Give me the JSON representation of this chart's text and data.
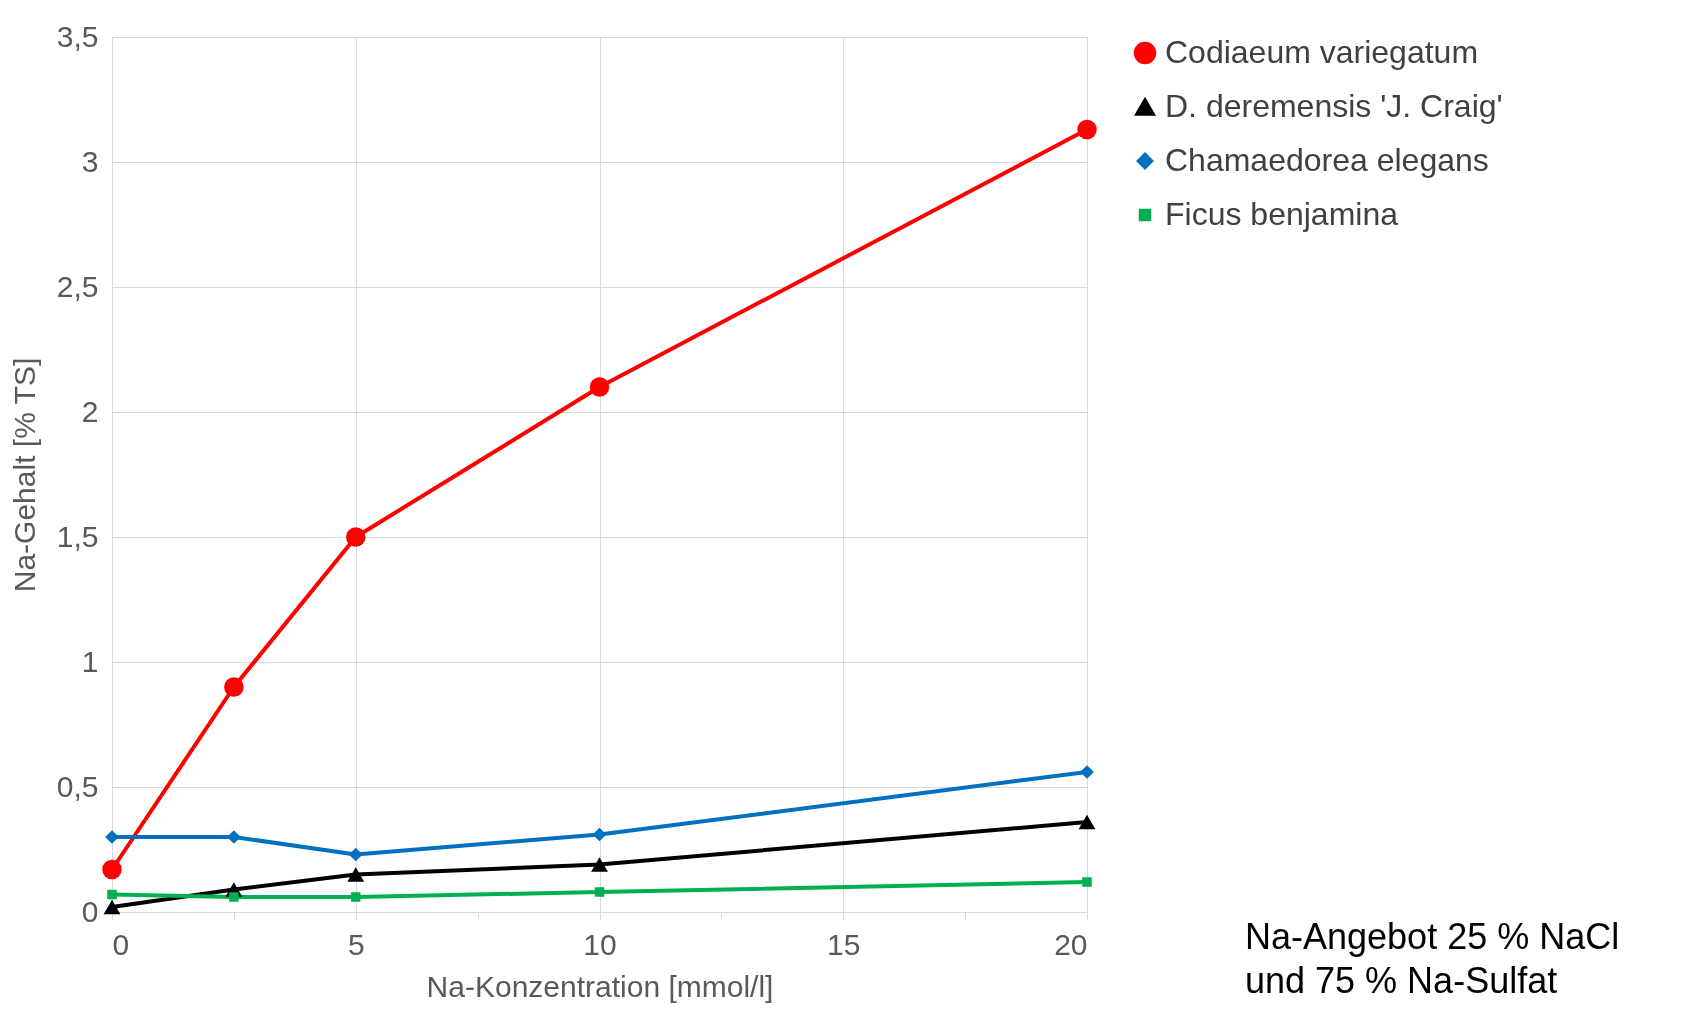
{
  "chart_data": {
    "type": "line",
    "xlabel": "Na-Konzentration [mmol/l]",
    "ylabel": "Na-Gehalt [% TS]",
    "x": [
      0,
      2.5,
      5,
      10,
      20
    ],
    "series": [
      {
        "name": "Codiaeum variegatum",
        "color": "#ff0000",
        "marker": "circle",
        "values": [
          0.17,
          0.9,
          1.5,
          2.1,
          3.13
        ]
      },
      {
        "name": "D. deremensis 'J. Craig'",
        "color": "#000000",
        "marker": "triangle",
        "values": [
          0.02,
          0.09,
          0.15,
          0.19,
          0.36
        ]
      },
      {
        "name": "Chamaedorea elegans",
        "color": "#0070c0",
        "marker": "diamond",
        "values": [
          0.3,
          0.3,
          0.23,
          0.31,
          0.56
        ]
      },
      {
        "name": "Ficus benjamina",
        "color": "#00b050",
        "marker": "square",
        "values": [
          0.07,
          0.06,
          0.06,
          0.08,
          0.12
        ]
      }
    ],
    "xlim": [
      0,
      20
    ],
    "xticks": [
      0,
      {
        "value": 2.5,
        "label": null
      },
      5,
      {
        "value": 7.5,
        "label": null
      },
      10,
      {
        "value": 12.5,
        "label": null
      },
      15,
      {
        "value": 17.5,
        "label": null
      },
      20
    ],
    "ylim": [
      0,
      3.5
    ],
    "yticks": [
      0,
      {
        "value": 0.5,
        "label": "0,5"
      },
      1,
      {
        "value": 1.5,
        "label": "1,5"
      },
      2,
      {
        "value": 2.5,
        "label": "2,5"
      },
      3,
      {
        "value": 3.5,
        "label": "3,5"
      }
    ],
    "grid": true,
    "legend": "right",
    "line_style": "solid",
    "annotations": [
      "Na-Angebot 25 % NaCl\nund 75 % Na-Sulfat"
    ]
  }
}
